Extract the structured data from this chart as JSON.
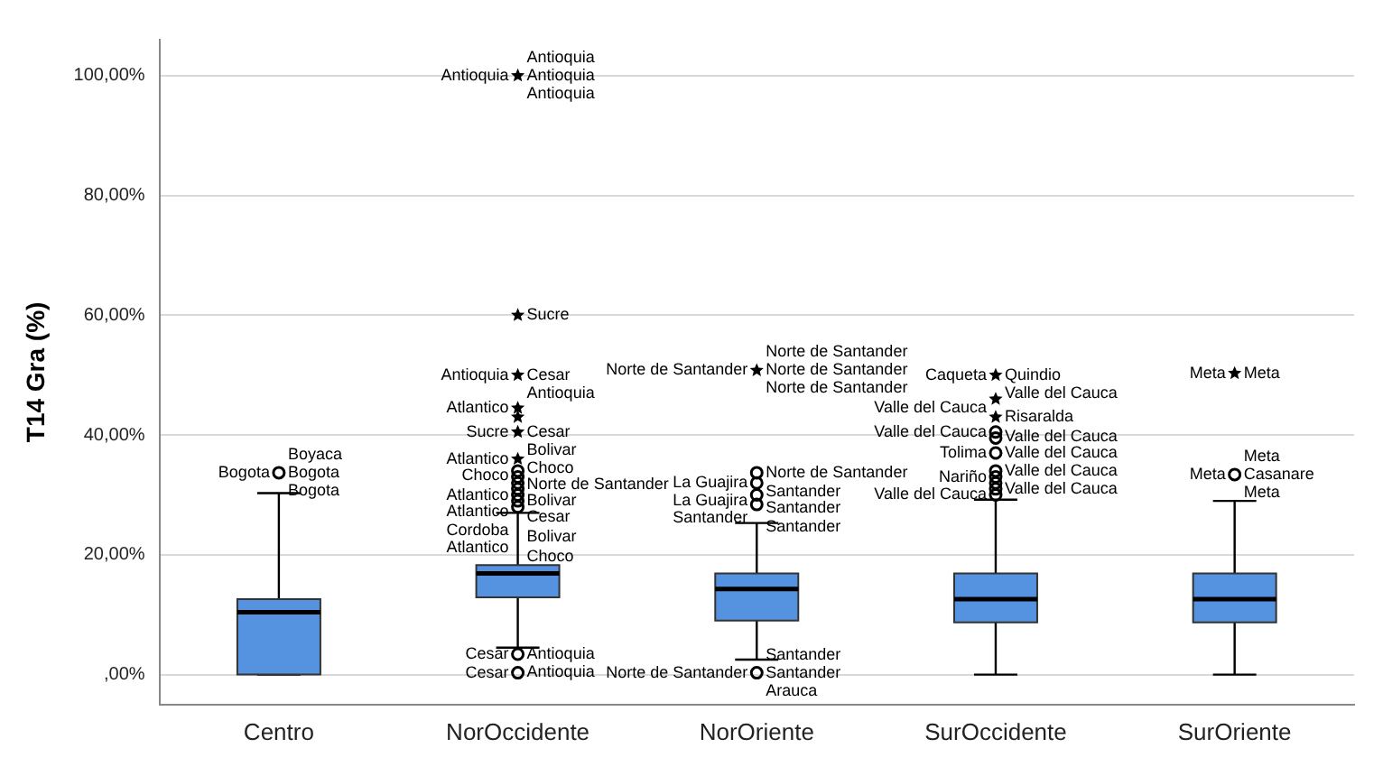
{
  "chart_data": {
    "type": "box",
    "ylabel": "T14 Gra (%)",
    "categories": [
      "Centro",
      "NorOccidente",
      "NorOriente",
      "SurOccidente",
      "SurOriente"
    ],
    "ylim": [
      -5,
      106
    ],
    "yticks": [
      {
        "value": 0,
        "label": ",00%"
      },
      {
        "value": 20,
        "label": "20,00%"
      },
      {
        "value": 40,
        "label": "40,00%"
      },
      {
        "value": 60,
        "label": "60,00%"
      },
      {
        "value": 80,
        "label": "80,00%"
      },
      {
        "value": 100,
        "label": "100,00%"
      }
    ],
    "grid": "y",
    "series": [
      {
        "color": "#5592e0",
        "boxes": [
          {
            "low": 0,
            "q1": 0,
            "median": 10.4,
            "q3": 12.6,
            "high": 30.3
          },
          {
            "low": 4.5,
            "q1": 12.9,
            "median": 16.9,
            "q3": 18.3,
            "high": 27
          },
          {
            "low": 2.5,
            "q1": 9,
            "median": 14.3,
            "q3": 16.9,
            "high": 25.3
          },
          {
            "low": 0,
            "q1": 8.7,
            "median": 12.6,
            "q3": 16.9,
            "high": 29.2
          },
          {
            "low": 0,
            "q1": 8.7,
            "median": 12.6,
            "q3": 16.9,
            "high": 29
          }
        ]
      },
      {
        "type": "scatter",
        "color": "#000000",
        "x": [
          "Centro",
          "NorOccidente",
          "NorOccidente",
          "NorOccidente",
          "NorOccidente",
          "NorOccidente",
          "NorOccidente",
          "NorOccidente",
          "NorOccidente",
          "NorOccidente",
          "NorOccidente",
          "NorOccidente",
          "NorOccidente",
          "NorOccidente",
          "NorOccidente",
          "NorOccidente",
          "NorOccidente",
          "NorOriente",
          "NorOriente",
          "NorOriente",
          "NorOriente",
          "NorOriente",
          "NorOriente",
          "SurOccidente",
          "SurOccidente",
          "SurOccidente",
          "SurOccidente",
          "SurOccidente",
          "SurOccidente",
          "SurOccidente",
          "SurOccidente",
          "SurOccidente",
          "SurOccidente",
          "SurOccidente",
          "SurOriente",
          "SurOriente"
        ],
        "values": [
          33.7,
          0.3,
          3.4,
          28,
          29,
          30,
          31,
          32,
          33,
          34,
          36,
          40.5,
          43,
          44.5,
          50,
          60,
          100,
          0.3,
          28.4,
          30,
          32,
          33.7,
          50.8,
          30,
          31,
          32,
          33,
          34,
          37,
          39.5,
          40.5,
          43,
          46,
          50,
          33.4,
          50.3
        ]
      }
    ],
    "annotations": [
      {
        "text": "Bogota",
        "x": "Centro",
        "y": 33.7
      },
      {
        "text": "Bogota",
        "x": "Centro",
        "y": 33.7
      },
      {
        "text": "Bogota",
        "x": "Centro",
        "y": 33.7
      },
      {
        "text": "Boyaca",
        "x": "Centro",
        "y": 33.7
      },
      {
        "text": "Antioquia",
        "x": "NorOccidente",
        "y": 100
      },
      {
        "text": "Antioquia",
        "x": "NorOccidente",
        "y": 100
      },
      {
        "text": "Antioquia",
        "x": "NorOccidente",
        "y": 100
      },
      {
        "text": "Antioquia",
        "x": "NorOccidente",
        "y": 100
      },
      {
        "text": "Sucre",
        "x": "NorOccidente",
        "y": 60
      },
      {
        "text": "Cesar",
        "x": "NorOccidente",
        "y": 50
      },
      {
        "text": "Antioquia",
        "x": "NorOccidente",
        "y": 50
      },
      {
        "text": "Antioquia",
        "x": "NorOccidente",
        "y": 50
      },
      {
        "text": "Atlantico",
        "x": "NorOccidente",
        "y": 44.5
      },
      {
        "text": "Cesar",
        "x": "NorOccidente",
        "y": 40.5
      },
      {
        "text": "Sucre",
        "x": "NorOccidente",
        "y": 40.5
      },
      {
        "text": "Bolivar",
        "x": "NorOccidente",
        "y": 40.5
      },
      {
        "text": "Atlantico",
        "x": "NorOccidente",
        "y": 36
      },
      {
        "text": "Choco",
        "x": "NorOccidente",
        "y": 36
      },
      {
        "text": "Choco",
        "x": "NorOccidente",
        "y": 34
      },
      {
        "text": "Norte de Santander",
        "x": "NorOccidente",
        "y": 34
      },
      {
        "text": "Atlantico",
        "x": "NorOccidente",
        "y": 33
      },
      {
        "text": "Bolivar",
        "x": "NorOccidente",
        "y": 32
      },
      {
        "text": "Atlantico",
        "x": "NorOccidente",
        "y": 31
      },
      {
        "text": "Cesar",
        "x": "NorOccidente",
        "y": 30
      },
      {
        "text": "Cordoba",
        "x": "NorOccidente",
        "y": 30
      },
      {
        "text": "Bolivar",
        "x": "NorOccidente",
        "y": 29
      },
      {
        "text": "Atlantico",
        "x": "NorOccidente",
        "y": 28
      },
      {
        "text": "Choco",
        "x": "NorOccidente",
        "y": 28
      },
      {
        "text": "Antioquia",
        "x": "NorOccidente",
        "y": 3.4
      },
      {
        "text": "Cesar",
        "x": "NorOccidente",
        "y": 3.4
      },
      {
        "text": "Antioquia",
        "x": "NorOccidente",
        "y": 3.4
      },
      {
        "text": "Cesar",
        "x": "NorOccidente",
        "y": 0.3
      },
      {
        "text": "Norte de Santander",
        "x": "NorOriente",
        "y": 50.8
      },
      {
        "text": "Norte de Santander",
        "x": "NorOriente",
        "y": 50.8
      },
      {
        "text": "Norte de Santander",
        "x": "NorOriente",
        "y": 50.8
      },
      {
        "text": "Norte de Santander",
        "x": "NorOriente",
        "y": 50.8
      },
      {
        "text": "Norte de Santander",
        "x": "NorOriente",
        "y": 33.7
      },
      {
        "text": "La Guajira",
        "x": "NorOriente",
        "y": 32
      },
      {
        "text": "Santander",
        "x": "NorOriente",
        "y": 32
      },
      {
        "text": "La Guajira",
        "x": "NorOriente",
        "y": 32
      },
      {
        "text": "Santander",
        "x": "NorOriente",
        "y": 30
      },
      {
        "text": "Santander",
        "x": "NorOriente",
        "y": 28.4
      },
      {
        "text": "Santander",
        "x": "NorOriente",
        "y": 28.4
      },
      {
        "text": "Santander",
        "x": "NorOriente",
        "y": 0.3
      },
      {
        "text": "Norte de Santander",
        "x": "NorOriente",
        "y": 0.3
      },
      {
        "text": "Arauca",
        "x": "NorOriente",
        "y": 0.3
      },
      {
        "text": "Santander",
        "x": "NorOriente",
        "y": 0.3
      },
      {
        "text": "Quindio",
        "x": "SurOccidente",
        "y": 50
      },
      {
        "text": "Caqueta",
        "x": "SurOccidente",
        "y": 50
      },
      {
        "text": "Valle del Cauca",
        "x": "SurOccidente",
        "y": 50
      },
      {
        "text": "Valle del Cauca",
        "x": "SurOccidente",
        "y": 46
      },
      {
        "text": "Risaralda",
        "x": "SurOccidente",
        "y": 43
      },
      {
        "text": "Valle del Cauca",
        "x": "SurOccidente",
        "y": 40.5
      },
      {
        "text": "Valle del Cauca",
        "x": "SurOccidente",
        "y": 40.5
      },
      {
        "text": "Valle del Cauca",
        "x": "SurOccidente",
        "y": 37
      },
      {
        "text": "Tolima",
        "x": "SurOccidente",
        "y": 37
      },
      {
        "text": "Valle del Cauca",
        "x": "SurOccidente",
        "y": 34
      },
      {
        "text": "Nariño",
        "x": "SurOccidente",
        "y": 33
      },
      {
        "text": "Valle del Cauca",
        "x": "SurOccidente",
        "y": 31
      },
      {
        "text": "Valle del Cauca",
        "x": "SurOccidente",
        "y": 30
      },
      {
        "text": "Meta",
        "x": "SurOriente",
        "y": 50.3
      },
      {
        "text": "Meta",
        "x": "SurOriente",
        "y": 50.3
      },
      {
        "text": "Casanare",
        "x": "SurOriente",
        "y": 33.4
      },
      {
        "text": "Meta",
        "x": "SurOriente",
        "y": 33.4
      },
      {
        "text": "Meta",
        "x": "SurOriente",
        "y": 33.4
      },
      {
        "text": "Meta",
        "x": "SurOriente",
        "y": 33.4
      }
    ]
  }
}
